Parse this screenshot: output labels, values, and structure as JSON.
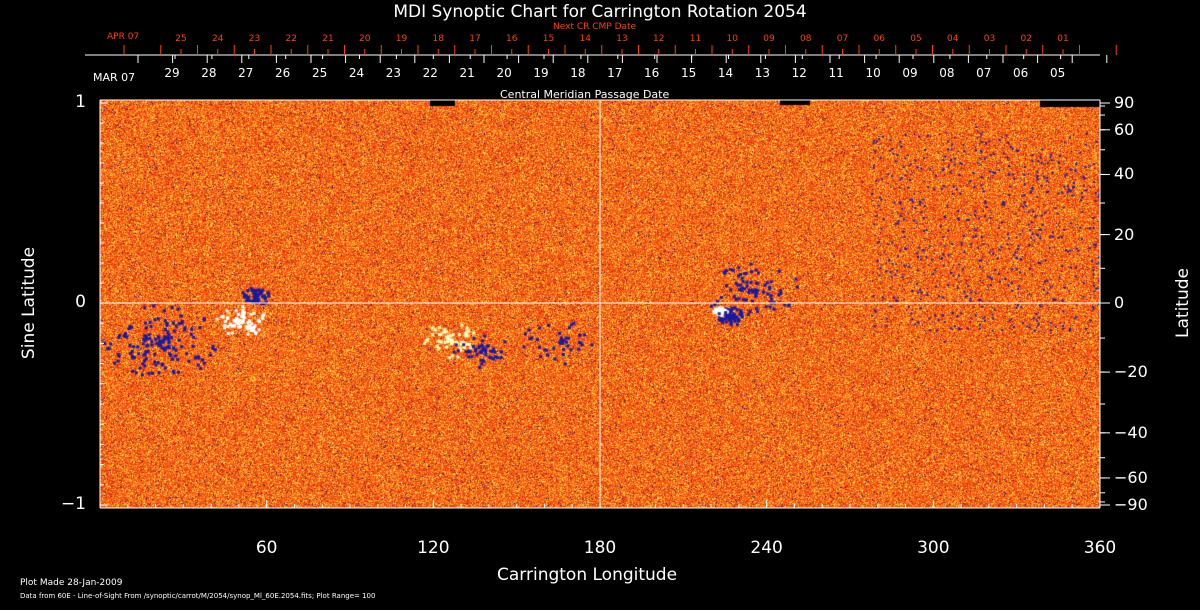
{
  "chart_data": {
    "type": "heatmap",
    "title": "MDI Synoptic Chart for Carrington Rotation 2054",
    "xlabel": "Carrington Longitude",
    "ylabel_left": "Sine Latitude",
    "ylabel_right": "Latitude",
    "xlim": [
      0,
      360
    ],
    "ylim": [
      -1,
      1
    ],
    "x_ticks": [
      "60",
      "120",
      "180",
      "240",
      "300",
      "360"
    ],
    "x_tick_values": [
      60,
      120,
      180,
      240,
      300,
      360
    ],
    "y_ticks_left": [
      "1",
      "0",
      "−1"
    ],
    "y_tick_values_left": [
      1,
      0,
      -1
    ],
    "y_ticks_right": [
      "90",
      "60",
      "40",
      "20",
      "0",
      "−20",
      "−40",
      "−60",
      "−90"
    ],
    "y_tick_values_right": [
      90,
      60,
      40,
      20,
      0,
      -20,
      -40,
      -60,
      -90
    ],
    "top_axis": {
      "label": "Central Meridian Passage Date",
      "month_label": "MAR 07",
      "dates": [
        "29",
        "28",
        "27",
        "26",
        "25",
        "24",
        "23",
        "22",
        "21",
        "20",
        "19",
        "18",
        "17",
        "16",
        "15",
        "14",
        "13",
        "12",
        "11",
        "10",
        "09",
        "08",
        "07",
        "06",
        "05"
      ]
    },
    "next_axis": {
      "label": "Next CR CMP Date",
      "month_label": "APR 07",
      "dates": [
        "25",
        "24",
        "23",
        "22",
        "21",
        "20",
        "19",
        "18",
        "17",
        "16",
        "15",
        "14",
        "13",
        "12",
        "11",
        "10",
        "09",
        "08",
        "07",
        "06",
        "05",
        "04",
        "03",
        "02",
        "01"
      ]
    },
    "footer": {
      "plot_made": "Plot Made 28-Jan-2009",
      "data_from": "Data from 60E - Line-of-Sight From /synoptic/carrot/M/2054/synop_Ml_60E.2054.fits; Plot Range=  100"
    },
    "colors": {
      "main": "#ff4a10",
      "next": "#ff4000",
      "positive": "#ffffff",
      "negative": "#1a1aa0"
    }
  }
}
